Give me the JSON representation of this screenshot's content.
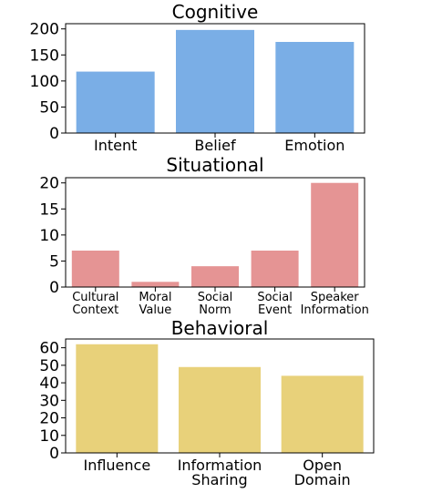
{
  "chart_data": [
    {
      "type": "bar",
      "title": "Cognitive",
      "categories": [
        "Intent",
        "Belief",
        "Emotion"
      ],
      "values": [
        118,
        198,
        175
      ],
      "ylim": [
        0,
        210
      ],
      "yticks": [
        0,
        50,
        100,
        150,
        200
      ],
      "color": "#7aaee6",
      "grid": false
    },
    {
      "type": "bar",
      "title": "Situational",
      "categories": [
        "Cultural\nContext",
        "Moral\nValue",
        "Social\nNorm",
        "Social\nEvent",
        "Speaker\nInformation"
      ],
      "values": [
        7,
        1,
        4,
        7,
        20
      ],
      "ylim": [
        0,
        21
      ],
      "yticks": [
        0,
        5,
        10,
        15,
        20
      ],
      "color": "#e59494",
      "grid": false
    },
    {
      "type": "bar",
      "title": "Behavioral",
      "categories": [
        "Influence",
        "Information\nSharing",
        "Open\nDomain"
      ],
      "values": [
        62,
        49,
        44
      ],
      "ylim": [
        0,
        65
      ],
      "yticks": [
        0,
        10,
        20,
        30,
        40,
        50,
        60
      ],
      "color": "#e8d17a",
      "grid": false
    }
  ]
}
